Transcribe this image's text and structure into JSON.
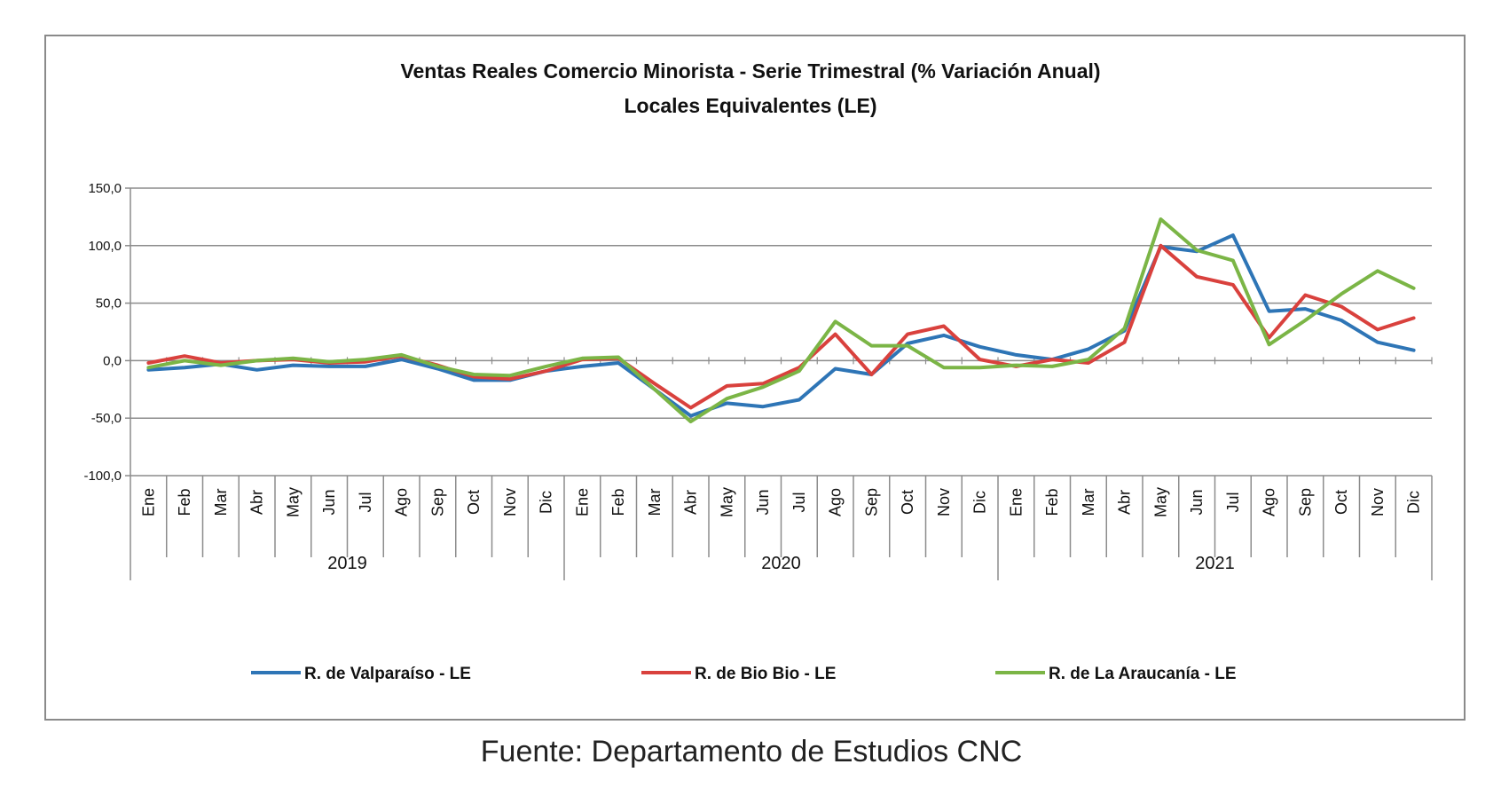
{
  "chart_data": {
    "type": "line",
    "title": "Ventas Reales Comercio Minorista - Serie Trimestral (% Variación Anual)",
    "subtitle": "Locales Equivalentes (LE)",
    "ylim": [
      -100,
      150
    ],
    "yticks": [
      "150,0",
      "100,0",
      "50,0",
      "0,0",
      "-50,0",
      "-100,0"
    ],
    "ytick_values": [
      150,
      100,
      50,
      0,
      -50,
      -100
    ],
    "grid": true,
    "legend_position": "bottom",
    "categories": [
      "Ene",
      "Feb",
      "Mar",
      "Abr",
      "May",
      "Jun",
      "Jul",
      "Ago",
      "Sep",
      "Oct",
      "Nov",
      "Dic",
      "Ene",
      "Feb",
      "Mar",
      "Abr",
      "May",
      "Jun",
      "Jul",
      "Ago",
      "Sep",
      "Oct",
      "Nov",
      "Dic",
      "Ene",
      "Feb",
      "Mar",
      "Abr",
      "May",
      "Jun",
      "Jul",
      "Ago",
      "Sep",
      "Oct",
      "Nov",
      "Dic"
    ],
    "years": [
      "2019",
      "2020",
      "2021"
    ],
    "series": [
      {
        "name": "R. de Valparaíso - LE",
        "color": "#2e75b6",
        "values": [
          -8,
          -6,
          -3,
          -8,
          -4,
          -5,
          -5,
          1,
          -7,
          -17,
          -17,
          -9,
          -5,
          -2,
          -25,
          -48,
          -37,
          -40,
          -34,
          -7,
          -12,
          15,
          22,
          12,
          5,
          1,
          10,
          26,
          99,
          95,
          109,
          43,
          45,
          35,
          16,
          9
        ]
      },
      {
        "name": "R. de Bio Bio - LE",
        "color": "#d9413d",
        "values": [
          -2,
          4,
          -2,
          0,
          1,
          -2,
          -1,
          4,
          -4,
          -14,
          -16,
          -9,
          1,
          2,
          -20,
          -41,
          -22,
          -20,
          -6,
          23,
          -12,
          23,
          30,
          1,
          -5,
          1,
          -2,
          16,
          100,
          73,
          66,
          20,
          57,
          47,
          27,
          37
        ]
      },
      {
        "name": "R. de La Araucanía - LE",
        "color": "#7bb546",
        "values": [
          -6,
          0,
          -4,
          0,
          2,
          -1,
          1,
          5,
          -5,
          -12,
          -13,
          -5,
          2,
          3,
          -25,
          -53,
          -33,
          -23,
          -9,
          34,
          13,
          13,
          -6,
          -6,
          -4,
          -5,
          1,
          28,
          123,
          96,
          87,
          14,
          35,
          58,
          78,
          63
        ]
      }
    ],
    "source": "Fuente: Departamento de Estudios CNC"
  }
}
